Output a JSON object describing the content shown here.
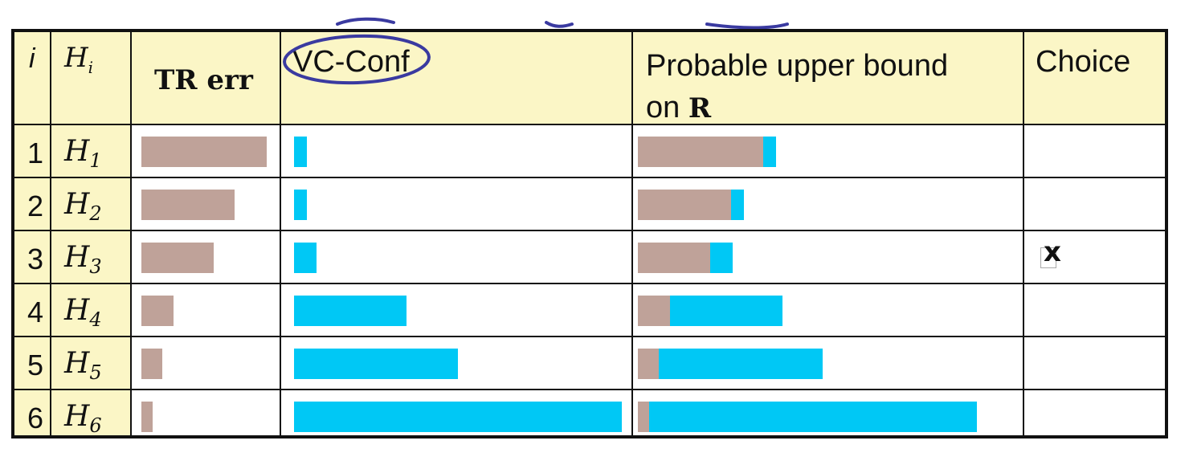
{
  "table": {
    "headers": {
      "i": "i",
      "h_letter": "H",
      "h_sub": "i",
      "tr_err": "TR err",
      "vc_conf": "VC-Conf",
      "upper_bound_line1": "Probable upper bound",
      "upper_bound_line2": "on ",
      "upper_bound_r": "R",
      "choice": "Choice"
    },
    "rows": [
      {
        "index": "1",
        "h_letter": "H",
        "h_sub": "1",
        "tr_err": 0.78,
        "vc_conf": 0.04,
        "choice": ""
      },
      {
        "index": "2",
        "h_letter": "H",
        "h_sub": "2",
        "tr_err": 0.58,
        "vc_conf": 0.04,
        "choice": ""
      },
      {
        "index": "3",
        "h_letter": "H",
        "h_sub": "3",
        "tr_err": 0.45,
        "vc_conf": 0.07,
        "choice": "x"
      },
      {
        "index": "4",
        "h_letter": "H",
        "h_sub": "4",
        "tr_err": 0.2,
        "vc_conf": 0.35,
        "choice": ""
      },
      {
        "index": "5",
        "h_letter": "H",
        "h_sub": "5",
        "tr_err": 0.13,
        "vc_conf": 0.51,
        "choice": ""
      },
      {
        "index": "6",
        "h_letter": "H",
        "h_sub": "6",
        "tr_err": 0.07,
        "vc_conf": 1.02,
        "choice": ""
      }
    ],
    "colors": {
      "tr_err": "#bfa299",
      "vc_conf": "#00c8f5",
      "header_bg": "#fbf6c6",
      "ink": "#3a3aa0"
    }
  }
}
